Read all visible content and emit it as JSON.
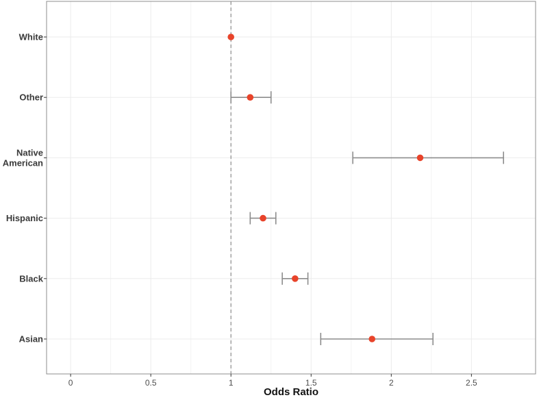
{
  "chart_data": {
    "type": "scatter",
    "subtype": "forest-plot",
    "title": "",
    "xlabel": "Odds Ratio",
    "ylabel": "",
    "xlim": [
      -0.15,
      2.9
    ],
    "xticks": [
      0,
      0.5,
      1,
      1.5,
      2,
      2.5
    ],
    "xtick_labels": [
      "0",
      "0.5",
      "1",
      "1.5",
      "2",
      "2.5"
    ],
    "reference_line": 1,
    "grid": true,
    "legend": "none",
    "colors": {
      "point": "#e8432a",
      "errorbar": "#8c8c8c",
      "grid": "#ebebeb",
      "panel_border": "#8c8c8c",
      "reference_line": "#8c8c8c"
    },
    "categories": [
      "White",
      "Other",
      "Native American",
      "Hispanic",
      "Black",
      "Asian"
    ],
    "category_display": [
      [
        "White"
      ],
      [
        "Other"
      ],
      [
        "Native",
        "American"
      ],
      [
        "Hispanic"
      ],
      [
        "Black"
      ],
      [
        "Asian"
      ]
    ],
    "values": [
      1.0,
      1.12,
      2.18,
      1.2,
      1.4,
      1.88
    ],
    "ci_lower": [
      null,
      1.0,
      1.76,
      1.12,
      1.32,
      1.56
    ],
    "ci_upper": [
      null,
      1.25,
      2.7,
      1.28,
      1.48,
      2.26
    ]
  }
}
